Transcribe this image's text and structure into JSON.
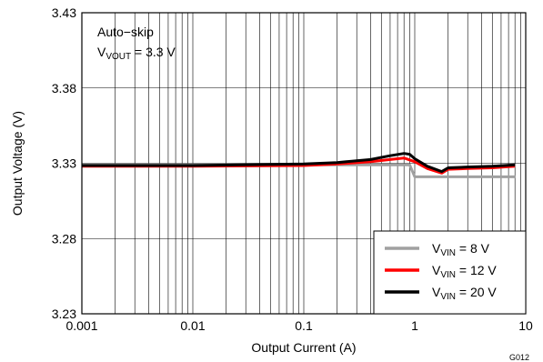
{
  "chart_data": {
    "type": "line",
    "xlabel": "Output Current (A)",
    "ylabel": "Output Voltage (V)",
    "xscale": "log",
    "xlim": [
      0.001,
      10
    ],
    "ylim": [
      3.23,
      3.43
    ],
    "x_ticks": [
      "0.001",
      "0.01",
      "0.1",
      "1",
      "10"
    ],
    "y_ticks": [
      "3.23",
      "3.28",
      "3.33",
      "3.38",
      "3.43"
    ],
    "grid": true,
    "legend_position": "bottom-right",
    "annotation": {
      "line1": "Auto−skip",
      "line2_prefix": "V",
      "line2_sub": "VOUT",
      "line2_suffix": " = 3.3 V"
    },
    "figure_id": "G012",
    "series": [
      {
        "name": "VIN = 8 V",
        "legend_prefix": "V",
        "legend_sub": "VIN",
        "legend_suffix": " = 8 V",
        "color": "#a0a0a0",
        "x": [
          0.001,
          0.01,
          0.1,
          0.3,
          0.5,
          0.9,
          1.0,
          1.2,
          2.0,
          4.0,
          8.0
        ],
        "y": [
          3.329,
          3.329,
          3.329,
          3.329,
          3.329,
          3.329,
          3.321,
          3.321,
          3.321,
          3.321,
          3.321
        ]
      },
      {
        "name": "VIN = 12 V",
        "legend_prefix": "V",
        "legend_sub": "VIN",
        "legend_suffix": " = 12 V",
        "color": "#ff0000",
        "x": [
          0.001,
          0.01,
          0.1,
          0.2,
          0.4,
          0.6,
          0.8,
          1.0,
          1.3,
          1.75,
          2.0,
          3.0,
          5.0,
          8.0
        ],
        "y": [
          3.328,
          3.328,
          3.3285,
          3.3295,
          3.331,
          3.3325,
          3.3335,
          3.331,
          3.3265,
          3.3235,
          3.326,
          3.3265,
          3.327,
          3.328
        ]
      },
      {
        "name": "VIN = 20 V",
        "legend_prefix": "V",
        "legend_sub": "VIN",
        "legend_suffix": " = 20 V",
        "color": "#000000",
        "x": [
          0.001,
          0.01,
          0.1,
          0.2,
          0.4,
          0.6,
          0.8,
          0.9,
          1.0,
          1.3,
          1.75,
          2.0,
          3.0,
          5.0,
          8.0
        ],
        "y": [
          3.3285,
          3.3285,
          3.3295,
          3.3305,
          3.3325,
          3.335,
          3.3365,
          3.336,
          3.333,
          3.328,
          3.3245,
          3.327,
          3.3275,
          3.328,
          3.329
        ]
      }
    ]
  }
}
